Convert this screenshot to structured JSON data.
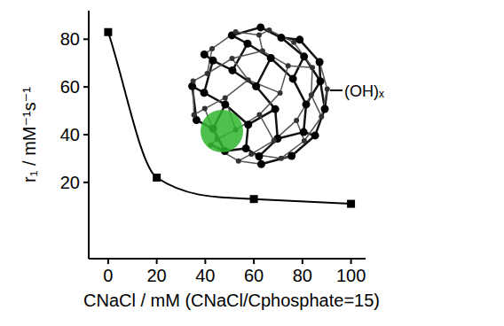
{
  "chart_data": {
    "type": "line",
    "x_label": "CNaCl / mM (CNaCl/Cphosphate=15)",
    "y_label": "r₁ / mM⁻¹s⁻¹",
    "annotations": [
      "(OH)ₓ"
    ],
    "x": [
      0,
      20,
      60,
      100
    ],
    "values": [
      83,
      22,
      13,
      11
    ],
    "color": "#000000",
    "marker": "square",
    "line_style": "solid",
    "xlim": [
      -8,
      106
    ],
    "xticks": [
      0,
      20,
      40,
      60,
      80,
      100
    ],
    "ylim": [
      -12,
      92
    ],
    "yticks": [
      20,
      40,
      60,
      80
    ],
    "grid": false
  }
}
